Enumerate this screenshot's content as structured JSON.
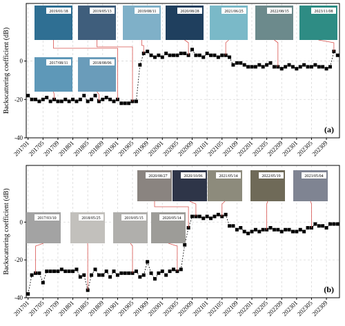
{
  "chart_data": [
    {
      "type": "line",
      "panel_label": "(a)",
      "ylabel": "Backscattering coefficient (dB)",
      "categories": [
        "201701",
        null,
        null,
        null,
        "201705",
        null,
        null,
        null,
        "201709",
        null,
        null,
        null,
        "201801",
        null,
        null,
        null,
        "201805",
        null,
        null,
        null,
        "201809",
        null,
        null,
        null,
        "201901",
        null,
        null,
        null,
        "201905",
        null,
        null,
        null,
        "201909",
        null,
        null,
        null,
        "202001",
        null,
        null,
        null,
        "202005",
        null,
        null,
        null,
        "202009",
        null,
        null,
        null,
        "202101",
        null,
        null,
        null,
        "202105",
        null,
        null,
        null,
        "202109",
        null,
        null,
        null,
        "202201",
        null,
        null,
        null,
        "202205",
        null,
        null,
        null,
        "202209",
        null,
        null,
        null,
        "202301",
        null,
        null,
        null,
        "202305",
        null,
        null,
        null,
        "202309",
        null,
        null,
        null
      ],
      "values": [
        -18,
        -20,
        -20,
        -21,
        -20,
        -19,
        -21,
        -20,
        -21,
        -21,
        -20,
        -21,
        -20,
        -21,
        -20,
        -18,
        -21,
        -20,
        -18,
        -21,
        -20,
        -19,
        -20,
        -21,
        -20,
        -22,
        -22,
        -22,
        -21,
        -21,
        -2,
        4,
        5,
        3,
        2,
        3,
        2,
        4,
        3,
        3,
        3,
        4,
        4,
        3,
        6,
        3,
        3,
        2,
        4,
        3,
        3,
        2,
        3,
        3,
        2,
        -2,
        -1,
        -1,
        -2,
        -3,
        -3,
        -3,
        -2,
        -3,
        -2,
        -1,
        -3,
        -3,
        -4,
        -3,
        -2,
        -3,
        -4,
        -3,
        -2,
        -3,
        -3,
        -2,
        -3,
        -3,
        -4,
        -3,
        5,
        3
      ],
      "color": "#000000",
      "marker": "square",
      "linestyle": "dashed",
      "ylim": [
        -40,
        30
      ],
      "yticks": [
        0,
        -20,
        -40
      ],
      "grid": true,
      "snapshots": [
        {
          "label": "2017/08/11",
          "color": "#5e98b8"
        },
        {
          "label": "2018/08/06",
          "color": "#6a9cba"
        },
        {
          "label": "2019/01/18",
          "color": "#2f6f93"
        },
        {
          "label": "2019/05/13",
          "color": "#3f5e7c"
        },
        {
          "label": "2019/08/11",
          "color": "#7fb0c8"
        },
        {
          "label": "2020/08/28",
          "color": "#1f3f5e"
        },
        {
          "label": "2021/06/25",
          "color": "#7ab9c8"
        },
        {
          "label": "2022/08/15",
          "color": "#6c8a8c"
        },
        {
          "label": "2023/11/08",
          "color": "#2e8c84"
        }
      ]
    },
    {
      "type": "line",
      "panel_label": "(b)",
      "ylabel": "Backscattering coefficient (dB)",
      "categories": [
        "201701",
        null,
        null,
        null,
        "201705",
        null,
        null,
        null,
        "201709",
        null,
        null,
        null,
        "201801",
        null,
        null,
        null,
        "201805",
        null,
        null,
        null,
        "201809",
        null,
        null,
        null,
        "201901",
        null,
        null,
        null,
        "201905",
        null,
        null,
        null,
        "201909",
        null,
        null,
        null,
        "202001",
        null,
        null,
        null,
        "202005",
        null,
        null,
        null,
        "202009",
        null,
        null,
        null,
        "202101",
        null,
        null,
        null,
        "202105",
        null,
        null,
        null,
        "202109",
        null,
        null,
        null,
        "202201",
        null,
        null,
        null,
        "202205",
        null,
        null,
        null,
        "202209",
        null,
        null,
        null,
        "202301",
        null,
        null,
        null,
        "202305",
        null,
        null,
        null,
        "202309",
        null,
        null,
        null
      ],
      "values": [
        -38,
        -28,
        -27,
        -27,
        -32,
        -26,
        -26,
        -26,
        -26,
        -25,
        -26,
        -26,
        -26,
        -25,
        -29,
        -28,
        -36,
        -28,
        -25,
        -28,
        -28,
        -26,
        -29,
        -26,
        -28,
        -27,
        -27,
        -27,
        -27,
        -26,
        -29,
        -28,
        -21,
        -27,
        -30,
        -27,
        -26,
        -28,
        -26,
        -25,
        -26,
        -25,
        -12,
        -3,
        3,
        3,
        3,
        2,
        3,
        2,
        3,
        4,
        3,
        4,
        -2,
        -2,
        -4,
        -3,
        -5,
        -6,
        -5,
        -4,
        -5,
        -4,
        -4,
        -3,
        -4,
        -4,
        -5,
        -4,
        -4,
        -5,
        -5,
        -4,
        -5,
        -3,
        -3,
        -1,
        -2,
        -2,
        -3,
        -1,
        -1,
        -1
      ],
      "color": "#000000",
      "marker": "square",
      "linestyle": "dashed",
      "ylim": [
        -40,
        30
      ],
      "yticks": [
        0,
        -20,
        -40
      ],
      "grid": true,
      "snapshots": [
        {
          "label": "2017/03/10",
          "color": "#a3a3a3"
        },
        {
          "label": "2018/05/25",
          "color": "#c2c0bc"
        },
        {
          "label": "2019/05/15",
          "color": "#b0afac"
        },
        {
          "label": "2020/05/14",
          "color": "#9d9c98"
        },
        {
          "label": "2020/08/27",
          "color": "#8a8480"
        },
        {
          "label": "2020/10/06",
          "color": "#2e3548"
        },
        {
          "label": "2021/05/14",
          "color": "#8d8b7c"
        },
        {
          "label": "2022/05/19",
          "color": "#6f6a58"
        },
        {
          "label": "2023/05/04",
          "color": "#7f8492"
        }
      ]
    }
  ]
}
